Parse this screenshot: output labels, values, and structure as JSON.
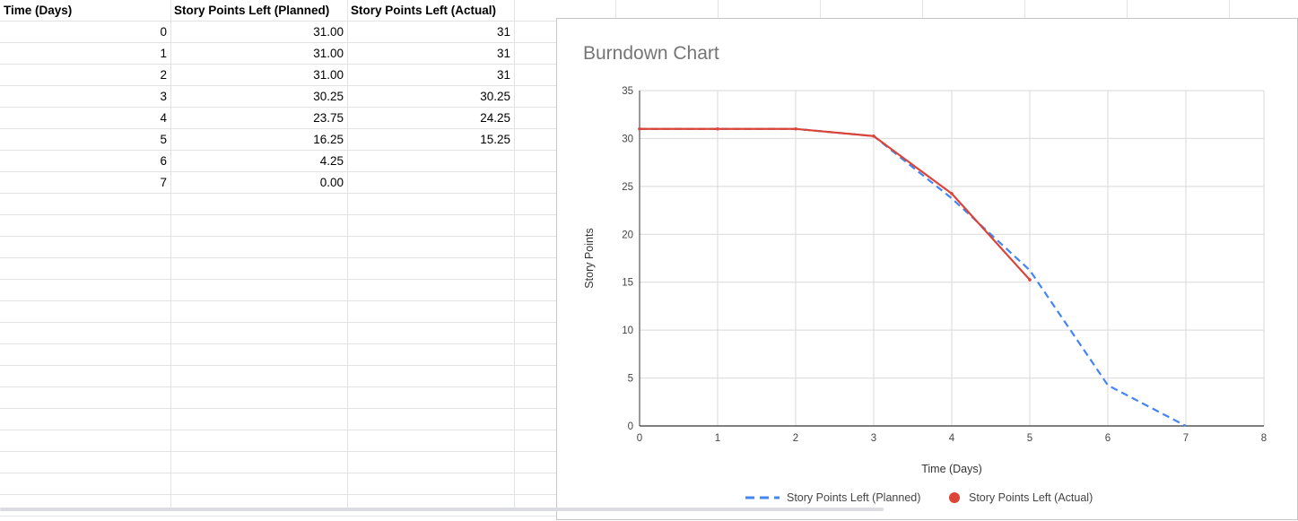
{
  "sheet": {
    "headers": [
      "Time (Days)",
      "Story Points Left (Planned)",
      "Story Points Left (Actual)"
    ],
    "rows": [
      [
        "0",
        "31.00",
        "31"
      ],
      [
        "1",
        "31.00",
        "31"
      ],
      [
        "2",
        "31.00",
        "31"
      ],
      [
        "3",
        "30.25",
        "30.25"
      ],
      [
        "4",
        "23.75",
        "24.25"
      ],
      [
        "5",
        "16.25",
        "15.25"
      ],
      [
        "6",
        "4.25",
        ""
      ],
      [
        "7",
        "0.00",
        ""
      ]
    ]
  },
  "chart_data": {
    "type": "line",
    "title": "Burndown Chart",
    "xlabel": "Time (Days)",
    "ylabel": "Story Points",
    "xlim": [
      0,
      8
    ],
    "ylim": [
      0,
      35
    ],
    "x_ticks": [
      "0",
      "1",
      "2",
      "3",
      "4",
      "5",
      "6",
      "7",
      "8"
    ],
    "y_ticks": [
      "0",
      "5",
      "10",
      "15",
      "20",
      "25",
      "30",
      "35"
    ],
    "grid": true,
    "legend_position": "bottom",
    "series": [
      {
        "name": "Story Points Left (Planned)",
        "style": "dashed",
        "color": "#4285f4",
        "x": [
          0,
          1,
          2,
          3,
          4,
          5,
          6,
          7
        ],
        "y": [
          31,
          31,
          31,
          30.25,
          23.75,
          16.25,
          4.25,
          0
        ]
      },
      {
        "name": "Story Points Left (Actual)",
        "style": "solid",
        "color": "#db4437",
        "x": [
          0,
          1,
          2,
          3,
          4,
          5
        ],
        "y": [
          31,
          31,
          31,
          30.25,
          24.25,
          15.25
        ]
      }
    ]
  }
}
